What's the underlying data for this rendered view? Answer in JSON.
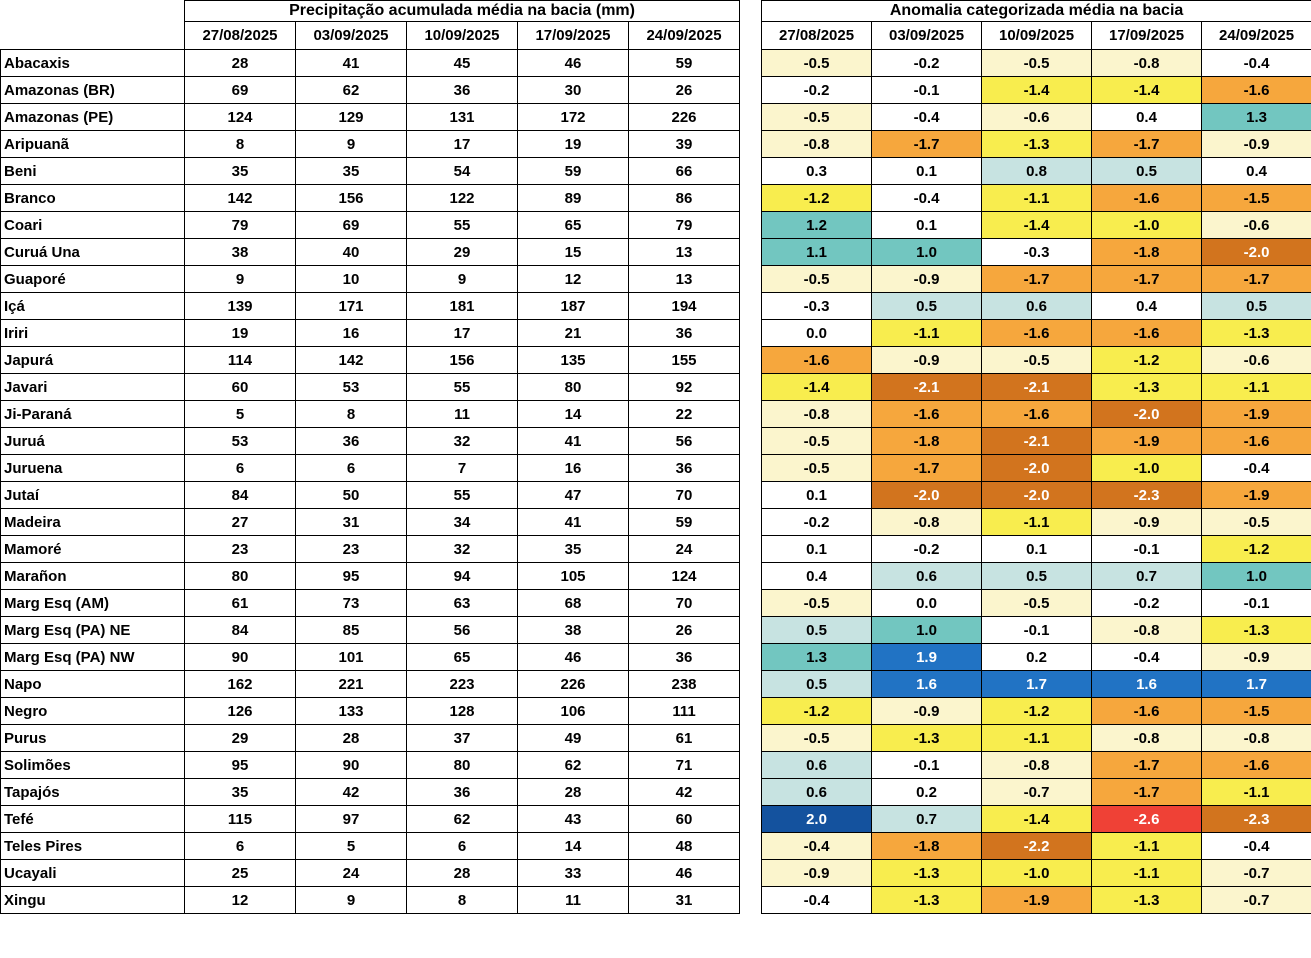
{
  "palette": {
    "w": "#FFFFFF",
    "c": "#FBF5CD",
    "y": "#F8ED4E",
    "o": "#F6A73D",
    "d": "#D2741E",
    "r": "#EF4136",
    "pb": "#C7E3E1",
    "t": "#72C6C0",
    "b": "#2173C4",
    "n": "#14529E"
  },
  "anomaly_text_white": [
    "d",
    "r",
    "b",
    "n"
  ],
  "chart_data": {
    "type": "heatmap",
    "left_title": "Precipitação acumulada média na bacia (mm)",
    "right_title": "Anomalia categorizada média na bacia",
    "columns": [
      "27/08/2025",
      "03/09/2025",
      "10/09/2025",
      "17/09/2025",
      "24/09/2025"
    ],
    "rows": [
      {
        "basin": "Abacaxis",
        "precip": [
          28,
          41,
          45,
          46,
          59
        ],
        "anomaly": [
          -0.5,
          -0.2,
          -0.5,
          -0.8,
          -0.4
        ],
        "anomaly_colors": [
          "c",
          "w",
          "c",
          "c",
          "w"
        ]
      },
      {
        "basin": "Amazonas (BR)",
        "precip": [
          69,
          62,
          36,
          30,
          26
        ],
        "anomaly": [
          -0.2,
          -0.1,
          -1.4,
          -1.4,
          -1.6
        ],
        "anomaly_colors": [
          "w",
          "w",
          "y",
          "y",
          "o"
        ]
      },
      {
        "basin": "Amazonas (PE)",
        "precip": [
          124,
          129,
          131,
          172,
          226
        ],
        "anomaly": [
          -0.5,
          -0.4,
          -0.6,
          0.4,
          1.3
        ],
        "anomaly_colors": [
          "c",
          "w",
          "c",
          "w",
          "t"
        ]
      },
      {
        "basin": "Aripuanã",
        "precip": [
          8,
          9,
          17,
          19,
          39
        ],
        "anomaly": [
          -0.8,
          -1.7,
          -1.3,
          -1.7,
          -0.9
        ],
        "anomaly_colors": [
          "c",
          "o",
          "y",
          "o",
          "c"
        ]
      },
      {
        "basin": "Beni",
        "precip": [
          35,
          35,
          54,
          59,
          66
        ],
        "anomaly": [
          0.3,
          0.1,
          0.8,
          0.5,
          0.4
        ],
        "anomaly_colors": [
          "w",
          "w",
          "pb",
          "pb",
          "w"
        ]
      },
      {
        "basin": "Branco",
        "precip": [
          142,
          156,
          122,
          89,
          86
        ],
        "anomaly": [
          -1.2,
          -0.4,
          -1.1,
          -1.6,
          -1.5
        ],
        "anomaly_colors": [
          "y",
          "w",
          "y",
          "o",
          "o"
        ]
      },
      {
        "basin": "Coari",
        "precip": [
          79,
          69,
          55,
          65,
          79
        ],
        "anomaly": [
          1.2,
          0.1,
          -1.4,
          -1.0,
          -0.6
        ],
        "anomaly_colors": [
          "t",
          "w",
          "y",
          "y",
          "c"
        ]
      },
      {
        "basin": "Curuá Una",
        "precip": [
          38,
          40,
          29,
          15,
          13
        ],
        "anomaly": [
          1.1,
          1.0,
          -0.3,
          -1.8,
          -2.0
        ],
        "anomaly_colors": [
          "t",
          "t",
          "w",
          "o",
          "d"
        ]
      },
      {
        "basin": "Guaporé",
        "precip": [
          9,
          10,
          9,
          12,
          13
        ],
        "anomaly": [
          -0.5,
          -0.9,
          -1.7,
          -1.7,
          -1.7
        ],
        "anomaly_colors": [
          "c",
          "c",
          "o",
          "o",
          "o"
        ]
      },
      {
        "basin": "Içá",
        "precip": [
          139,
          171,
          181,
          187,
          194
        ],
        "anomaly": [
          -0.3,
          0.5,
          0.6,
          0.4,
          0.5
        ],
        "anomaly_colors": [
          "w",
          "pb",
          "pb",
          "w",
          "pb"
        ]
      },
      {
        "basin": "Iriri",
        "precip": [
          19,
          16,
          17,
          21,
          36
        ],
        "anomaly": [
          0.0,
          -1.1,
          -1.6,
          -1.6,
          -1.3
        ],
        "anomaly_colors": [
          "w",
          "y",
          "o",
          "o",
          "y"
        ]
      },
      {
        "basin": "Japurá",
        "precip": [
          114,
          142,
          156,
          135,
          155
        ],
        "anomaly": [
          -1.6,
          -0.9,
          -0.5,
          -1.2,
          -0.6
        ],
        "anomaly_colors": [
          "o",
          "c",
          "c",
          "y",
          "c"
        ]
      },
      {
        "basin": "Javari",
        "precip": [
          60,
          53,
          55,
          80,
          92
        ],
        "anomaly": [
          -1.4,
          -2.1,
          -2.1,
          -1.3,
          -1.1
        ],
        "anomaly_colors": [
          "y",
          "d",
          "d",
          "y",
          "y"
        ]
      },
      {
        "basin": "Ji-Paraná",
        "precip": [
          5,
          8,
          11,
          14,
          22
        ],
        "anomaly": [
          -0.8,
          -1.6,
          -1.6,
          -2.0,
          -1.9
        ],
        "anomaly_colors": [
          "c",
          "o",
          "o",
          "d",
          "o"
        ]
      },
      {
        "basin": "Juruá",
        "precip": [
          53,
          36,
          32,
          41,
          56
        ],
        "anomaly": [
          -0.5,
          -1.8,
          -2.1,
          -1.9,
          -1.6
        ],
        "anomaly_colors": [
          "c",
          "o",
          "d",
          "o",
          "o"
        ]
      },
      {
        "basin": "Juruena",
        "precip": [
          6,
          6,
          7,
          16,
          36
        ],
        "anomaly": [
          -0.5,
          -1.7,
          -2.0,
          -1.0,
          -0.4
        ],
        "anomaly_colors": [
          "c",
          "o",
          "d",
          "y",
          "w"
        ]
      },
      {
        "basin": "Jutaí",
        "precip": [
          84,
          50,
          55,
          47,
          70
        ],
        "anomaly": [
          0.1,
          -2.0,
          -2.0,
          -2.3,
          -1.9
        ],
        "anomaly_colors": [
          "w",
          "d",
          "d",
          "d",
          "o"
        ]
      },
      {
        "basin": "Madeira",
        "precip": [
          27,
          31,
          34,
          41,
          59
        ],
        "anomaly": [
          -0.2,
          -0.8,
          -1.1,
          -0.9,
          -0.5
        ],
        "anomaly_colors": [
          "w",
          "c",
          "y",
          "c",
          "c"
        ]
      },
      {
        "basin": "Mamoré",
        "precip": [
          23,
          23,
          32,
          35,
          24
        ],
        "anomaly": [
          0.1,
          -0.2,
          0.1,
          -0.1,
          -1.2
        ],
        "anomaly_colors": [
          "w",
          "w",
          "w",
          "w",
          "y"
        ]
      },
      {
        "basin": "Marañon",
        "precip": [
          80,
          95,
          94,
          105,
          124
        ],
        "anomaly": [
          0.4,
          0.6,
          0.5,
          0.7,
          1.0
        ],
        "anomaly_colors": [
          "w",
          "pb",
          "pb",
          "pb",
          "t"
        ]
      },
      {
        "basin": "Marg Esq (AM)",
        "precip": [
          61,
          73,
          63,
          68,
          70
        ],
        "anomaly": [
          -0.5,
          0.0,
          -0.5,
          -0.2,
          -0.1
        ],
        "anomaly_colors": [
          "c",
          "w",
          "c",
          "w",
          "w"
        ]
      },
      {
        "basin": "Marg Esq (PA) NE",
        "precip": [
          84,
          85,
          56,
          38,
          26
        ],
        "anomaly": [
          0.5,
          1.0,
          -0.1,
          -0.8,
          -1.3
        ],
        "anomaly_colors": [
          "pb",
          "t",
          "w",
          "c",
          "y"
        ]
      },
      {
        "basin": "Marg Esq (PA) NW",
        "precip": [
          90,
          101,
          65,
          46,
          36
        ],
        "anomaly": [
          1.3,
          1.9,
          0.2,
          -0.4,
          -0.9
        ],
        "anomaly_colors": [
          "t",
          "b",
          "w",
          "w",
          "c"
        ]
      },
      {
        "basin": "Napo",
        "precip": [
          162,
          221,
          223,
          226,
          238
        ],
        "anomaly": [
          0.5,
          1.6,
          1.7,
          1.6,
          1.7
        ],
        "anomaly_colors": [
          "pb",
          "b",
          "b",
          "b",
          "b"
        ]
      },
      {
        "basin": "Negro",
        "precip": [
          126,
          133,
          128,
          106,
          111
        ],
        "anomaly": [
          -1.2,
          -0.9,
          -1.2,
          -1.6,
          -1.5
        ],
        "anomaly_colors": [
          "y",
          "c",
          "y",
          "o",
          "o"
        ]
      },
      {
        "basin": "Purus",
        "precip": [
          29,
          28,
          37,
          49,
          61
        ],
        "anomaly": [
          -0.5,
          -1.3,
          -1.1,
          -0.8,
          -0.8
        ],
        "anomaly_colors": [
          "c",
          "y",
          "y",
          "c",
          "c"
        ]
      },
      {
        "basin": "Solimões",
        "precip": [
          95,
          90,
          80,
          62,
          71
        ],
        "anomaly": [
          0.6,
          -0.1,
          -0.8,
          -1.7,
          -1.6
        ],
        "anomaly_colors": [
          "pb",
          "w",
          "c",
          "o",
          "o"
        ]
      },
      {
        "basin": "Tapajós",
        "precip": [
          35,
          42,
          36,
          28,
          42
        ],
        "anomaly": [
          0.6,
          0.2,
          -0.7,
          -1.7,
          -1.1
        ],
        "anomaly_colors": [
          "pb",
          "w",
          "c",
          "o",
          "y"
        ]
      },
      {
        "basin": "Tefé",
        "precip": [
          115,
          97,
          62,
          43,
          60
        ],
        "anomaly": [
          2.0,
          0.7,
          -1.4,
          -2.6,
          -2.3
        ],
        "anomaly_colors": [
          "n",
          "pb",
          "y",
          "r",
          "d"
        ]
      },
      {
        "basin": "Teles Pires",
        "precip": [
          6,
          5,
          6,
          14,
          48
        ],
        "anomaly": [
          -0.4,
          -1.8,
          -2.2,
          -1.1,
          -0.4
        ],
        "anomaly_colors": [
          "c",
          "o",
          "d",
          "y",
          "w"
        ]
      },
      {
        "basin": "Ucayali",
        "precip": [
          25,
          24,
          28,
          33,
          46
        ],
        "anomaly": [
          -0.9,
          -1.3,
          -1.0,
          -1.1,
          -0.7
        ],
        "anomaly_colors": [
          "c",
          "y",
          "y",
          "y",
          "c"
        ]
      },
      {
        "basin": "Xingu",
        "precip": [
          12,
          9,
          8,
          11,
          31
        ],
        "anomaly": [
          -0.4,
          -1.3,
          -1.9,
          -1.3,
          -0.7
        ],
        "anomaly_colors": [
          "w",
          "y",
          "o",
          "y",
          "c"
        ]
      }
    ]
  }
}
